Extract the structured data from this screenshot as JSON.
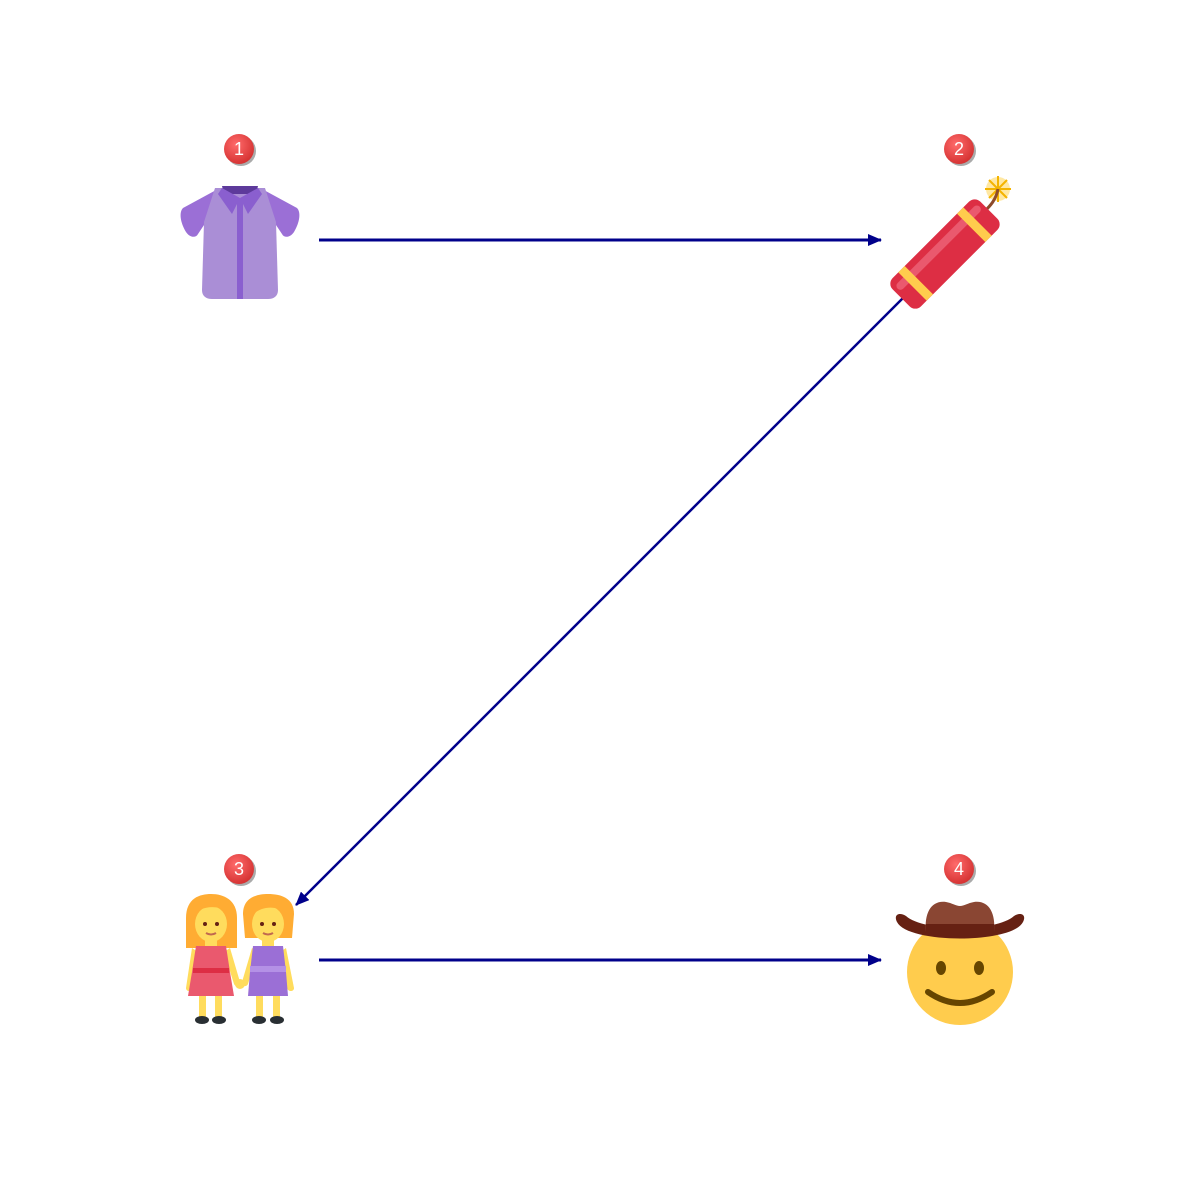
{
  "diagram": {
    "nodes": [
      {
        "id": "1",
        "badge": "1",
        "icon": "blouse-icon"
      },
      {
        "id": "2",
        "badge": "2",
        "icon": "firecracker-icon"
      },
      {
        "id": "3",
        "badge": "3",
        "icon": "two-women-holding-hands-icon"
      },
      {
        "id": "4",
        "badge": "4",
        "icon": "cowboy-hat-face-icon"
      }
    ],
    "edges": [
      {
        "from": "1",
        "to": "2"
      },
      {
        "from": "2",
        "to": "3"
      },
      {
        "from": "3",
        "to": "4"
      }
    ],
    "colors": {
      "arrow": "#00008b",
      "badge": "#e53935",
      "badge_text": "#ffffff"
    }
  }
}
